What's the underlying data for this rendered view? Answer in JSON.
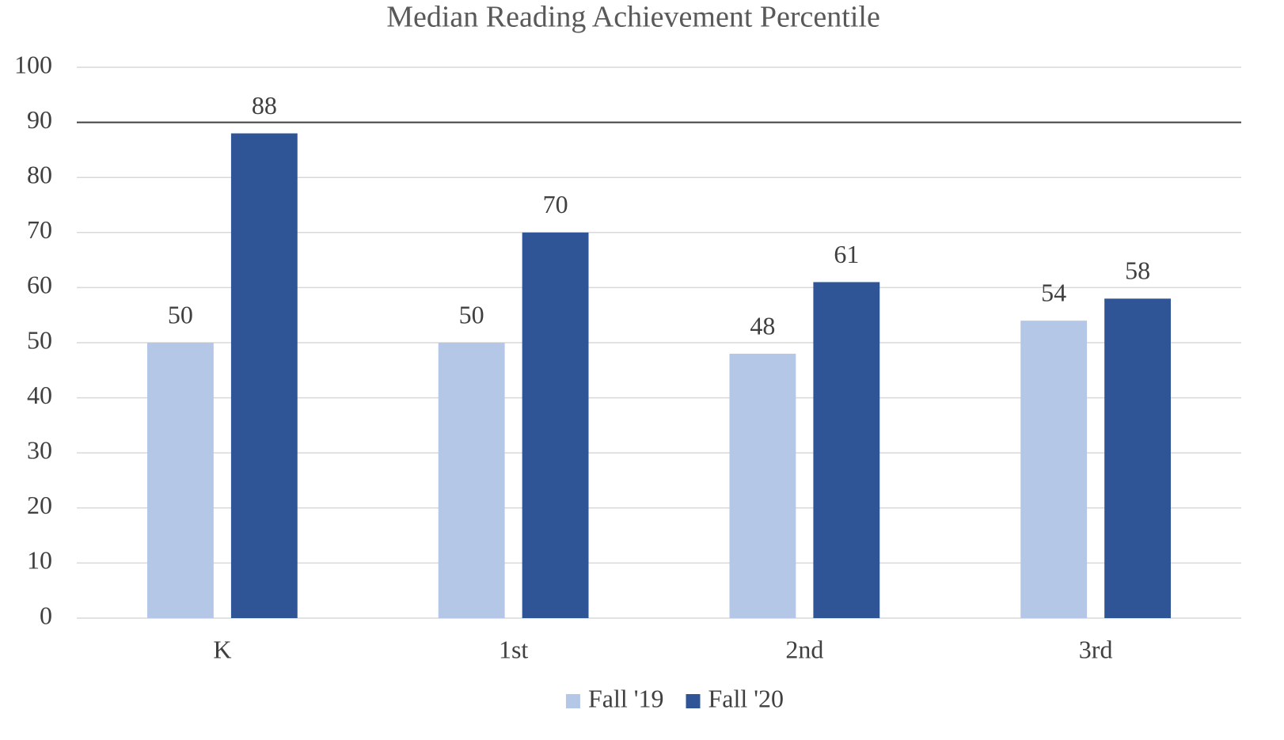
{
  "chart_data": {
    "type": "bar",
    "title": "Median Reading Achievement Percentile",
    "categories": [
      "K",
      "1st",
      "2nd",
      "3rd"
    ],
    "series": [
      {
        "name": "Fall '19",
        "color": "#b4c7e7",
        "values": [
          50,
          50,
          48,
          54
        ]
      },
      {
        "name": "Fall '20",
        "color": "#2f5597",
        "values": [
          88,
          70,
          61,
          58
        ]
      }
    ],
    "ylim": [
      0,
      100
    ],
    "yticks": [
      0,
      10,
      20,
      30,
      40,
      50,
      60,
      70,
      80,
      90,
      100
    ],
    "grid": true,
    "reference_line": 90,
    "legend": "bottom"
  }
}
